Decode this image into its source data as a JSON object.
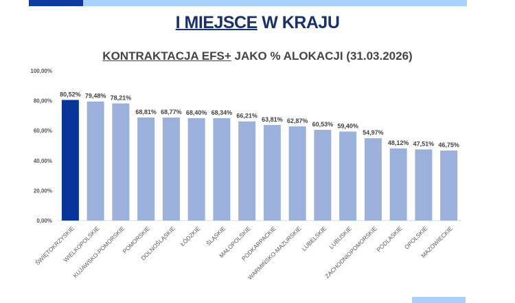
{
  "header": {
    "title_underlined": "I MIEJSCE",
    "title_rest": " W KRAJU"
  },
  "chart_data": {
    "type": "bar",
    "title_underlined": "KONTRAKTACJA EFS+",
    "title_rest": " JAKO % ALOKACJI (31.03.2026)",
    "categories": [
      "ŚWIĘTOKRZYSKIE",
      "WIELKOPOLSKIE",
      "KUJAWSKO-POMORSKIE",
      "POMORSKIE",
      "DOLNOŚLĄSKIE",
      "ŁÓDZKIE",
      "ŚLĄSKIE",
      "MAŁOPOLSKIE",
      "PODKARPACKIE",
      "WARMIŃSKO-MAZURSKIE",
      "LUBELSKIE",
      "LUBUSKIE",
      "ZACHODNIOPOMORSKIE",
      "PODLASKIE",
      "OPOLSKIE",
      "MAZOWIECKIE"
    ],
    "values": [
      80.52,
      79.48,
      78.21,
      68.81,
      68.77,
      68.4,
      68.34,
      66.21,
      63.81,
      62.87,
      60.53,
      59.4,
      54.97,
      48.12,
      47.51,
      46.75
    ],
    "data_labels": [
      "80,52%",
      "79,48%",
      "78,21%",
      "68,81%",
      "68,77%",
      "68,40%",
      "68,34%",
      "66,21%",
      "63,81%",
      "62,87%",
      "60,53%",
      "59,40%",
      "54,97%",
      "48,12%",
      "47,51%",
      "46,75%"
    ],
    "yticks": [
      "0,00%",
      "20,00%",
      "40,00%",
      "60,00%",
      "80,00%",
      "100,00%"
    ],
    "ylim": [
      0,
      100
    ],
    "grid": false,
    "colors": {
      "highlight": "#0a3598",
      "default": "#9bb0da"
    }
  }
}
